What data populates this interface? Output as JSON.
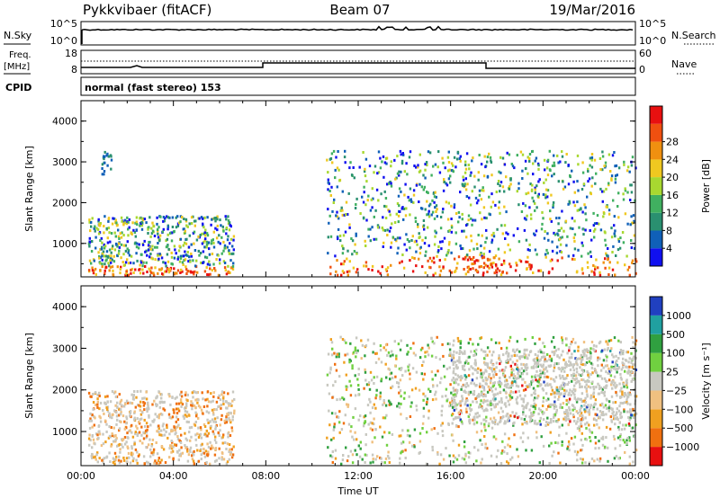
{
  "header": {
    "station": "Pykkvibaer (fitACF)",
    "beam": "Beam 07",
    "date": "19/Mar/2016"
  },
  "side_labels": {
    "nsky": "N.Sky",
    "nsearch": "N.Search",
    "freq_line1": "Freq.",
    "freq_line2": "[MHz]",
    "nave": "Nave",
    "cpid": "CPID"
  },
  "strip_ticks": {
    "nsky_left": [
      "10^5",
      "10^0"
    ],
    "nsky_right": [
      "10^5",
      "10^0"
    ],
    "freq_left": [
      "18",
      "8"
    ],
    "nave_right": [
      "60",
      "0"
    ]
  },
  "cpid_text": "normal (fast stereo) 153",
  "chart_data": [
    {
      "type": "heatmap",
      "name": "power",
      "ylabel": "Slant Range [km]",
      "xlabel": "",
      "x_ticks": [
        "00:00",
        "04:00",
        "08:00",
        "12:00",
        "16:00",
        "20:00",
        "00:00"
      ],
      "y_ticks": [
        "1000",
        "2000",
        "3000",
        "4000"
      ],
      "ylim": [
        180,
        4500
      ],
      "colorbar": {
        "label": "Power [dB]",
        "ticks": [
          "4",
          "8",
          "12",
          "16",
          "20",
          "24",
          "28"
        ],
        "colors": [
          "#1010f0",
          "#1060b8",
          "#2a9070",
          "#40b060",
          "#a8d830",
          "#f0c820",
          "#f09010",
          "#f05010",
          "#e81010"
        ]
      },
      "regions": [
        {
          "t0": 0.3,
          "t1": 6.6,
          "r0": 250,
          "r1": 1700,
          "level": "mixed-high-near"
        },
        {
          "t0": 0.8,
          "t1": 1.3,
          "r0": 2700,
          "r1": 3300,
          "level": "low"
        },
        {
          "t0": 10.6,
          "t1": 24.0,
          "r0": 250,
          "r1": 3300,
          "level": "mixed"
        },
        {
          "t0": 16.5,
          "t1": 18.0,
          "r0": 300,
          "r1": 700,
          "level": "high"
        }
      ]
    },
    {
      "type": "heatmap",
      "name": "velocity",
      "ylabel": "Slant Range [km]",
      "xlabel": "Time UT",
      "x_ticks": [
        "00:00",
        "04:00",
        "08:00",
        "12:00",
        "16:00",
        "20:00",
        "00:00"
      ],
      "y_ticks": [
        "1000",
        "2000",
        "3000",
        "4000"
      ],
      "ylim": [
        180,
        4500
      ],
      "colorbar": {
        "label": "Velocity [m s⁻¹]",
        "ticks": [
          "1000",
          "500",
          "100",
          "25",
          "−25",
          "−100",
          "−500",
          "−1000"
        ],
        "colors": [
          "#2040c0",
          "#20a0a0",
          "#30a040",
          "#70d040",
          "#c8c8c0",
          "#f0c080",
          "#f0a020",
          "#f07010",
          "#e81010"
        ]
      },
      "regions": [
        {
          "t0": 0.3,
          "t1": 6.6,
          "r0": 250,
          "r1": 2000,
          "level": "mixed-negative"
        },
        {
          "t0": 10.6,
          "t1": 24.0,
          "r0": 250,
          "r1": 3300,
          "level": "mixed-ground"
        },
        {
          "t0": 16.0,
          "t1": 24.0,
          "r0": 1200,
          "r1": 3000,
          "level": "ground"
        }
      ]
    }
  ]
}
